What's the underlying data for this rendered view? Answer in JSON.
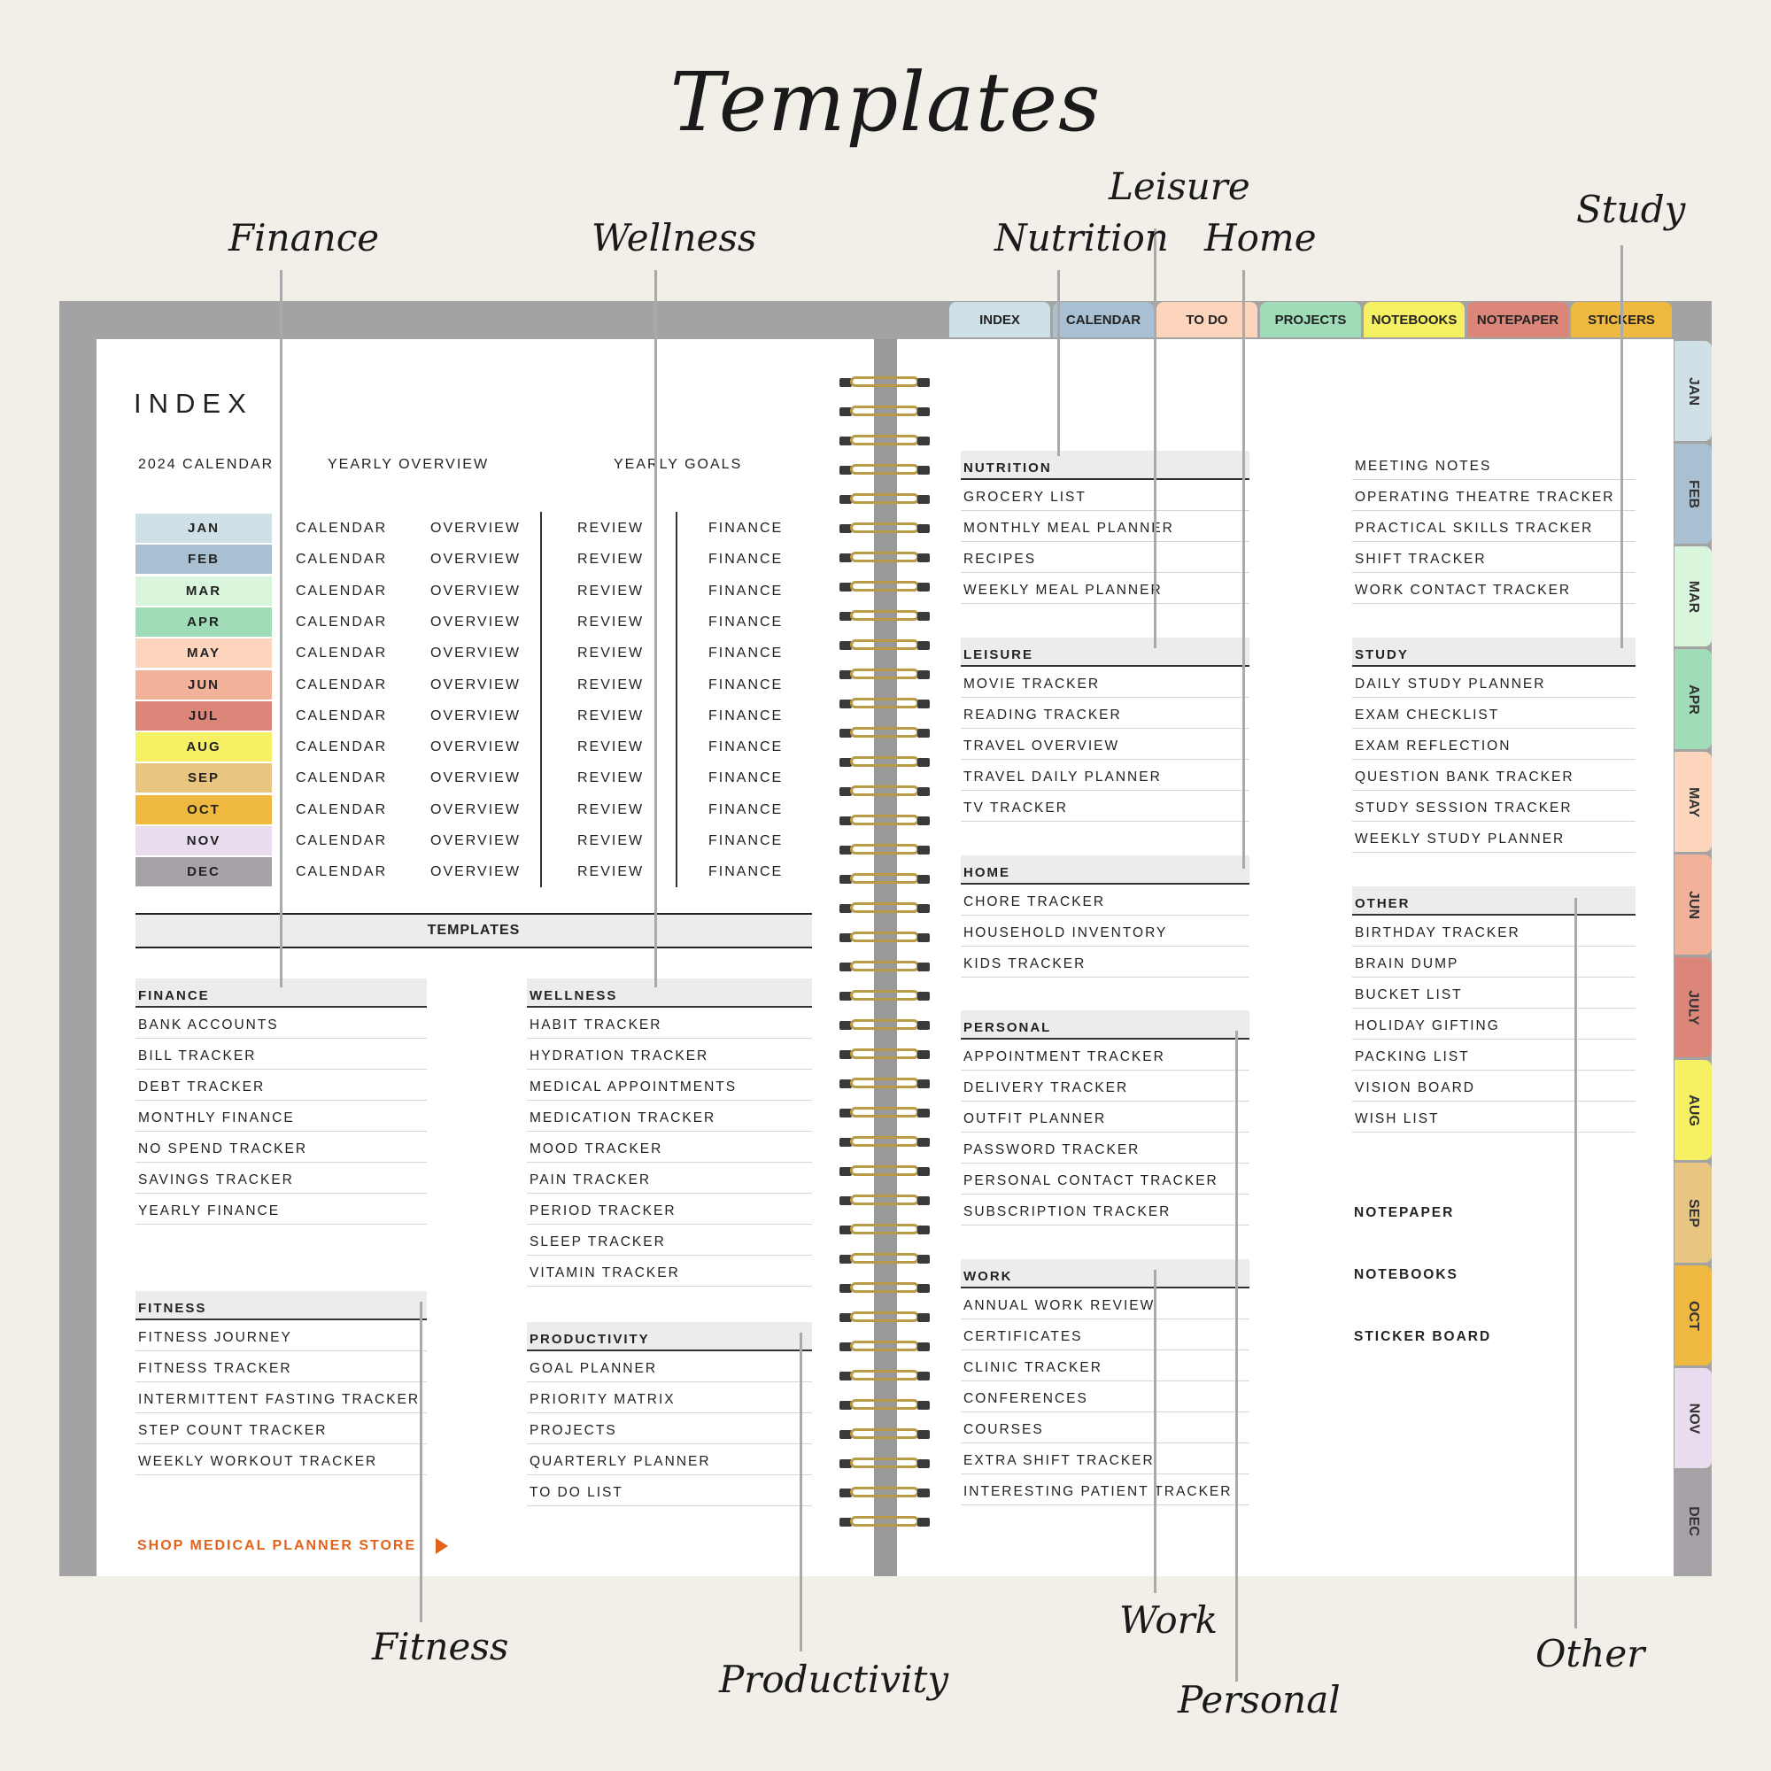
{
  "title": "Templates",
  "annotations": {
    "finance": "Finance",
    "wellness": "Wellness",
    "nutrition": "Nutrition",
    "leisure": "Leisure",
    "home": "Home",
    "study": "Study",
    "fitness": "Fitness",
    "productivity": "Productivity",
    "work": "Work",
    "personal": "Personal",
    "other": "Other"
  },
  "top_tabs": [
    {
      "label": "INDEX",
      "color": "#cfe0e6"
    },
    {
      "label": "CALENDAR",
      "color": "#a9c0d2"
    },
    {
      "label": "TO DO",
      "color": "#fcd5bc"
    },
    {
      "label": "PROJECTS",
      "color": "#9fdcb7"
    },
    {
      "label": "NOTEBOOKS",
      "color": "#f6f064"
    },
    {
      "label": "NOTEPAPER",
      "color": "#db8679"
    },
    {
      "label": "STICKERS",
      "color": "#eeb93e"
    }
  ],
  "side_tabs": [
    {
      "label": "JAN",
      "color": "#cfe0e6"
    },
    {
      "label": "FEB",
      "color": "#a9c0d2"
    },
    {
      "label": "MAR",
      "color": "#d9f6dc"
    },
    {
      "label": "APR",
      "color": "#9fdcb7"
    },
    {
      "label": "MAY",
      "color": "#fcd5bc"
    },
    {
      "label": "JUN",
      "color": "#f2b29a"
    },
    {
      "label": "JULY",
      "color": "#db8679"
    },
    {
      "label": "AUG",
      "color": "#f6f064"
    },
    {
      "label": "SEP",
      "color": "#e8c682"
    },
    {
      "label": "OCT",
      "color": "#eeb93e"
    },
    {
      "label": "NOV",
      "color": "#e8dcee"
    },
    {
      "label": "DEC",
      "color": "#a6a2a8"
    }
  ],
  "index": {
    "title": "INDEX",
    "headers": {
      "calendar": "2024 CALENDAR",
      "overview": "YEARLY OVERVIEW",
      "goals": "YEARLY GOALS"
    },
    "months": [
      {
        "label": "JAN",
        "color": "#cfe0e6"
      },
      {
        "label": "FEB",
        "color": "#a9c0d2"
      },
      {
        "label": "MAR",
        "color": "#d9f6dc"
      },
      {
        "label": "APR",
        "color": "#9fdcb7"
      },
      {
        "label": "MAY",
        "color": "#fcd5bc"
      },
      {
        "label": "JUN",
        "color": "#f2b29a"
      },
      {
        "label": "JUL",
        "color": "#db8679"
      },
      {
        "label": "AUG",
        "color": "#f6f064"
      },
      {
        "label": "SEP",
        "color": "#e8c682"
      },
      {
        "label": "OCT",
        "color": "#eeb93e"
      },
      {
        "label": "NOV",
        "color": "#e8dcee"
      },
      {
        "label": "DEC",
        "color": "#a6a2a8"
      }
    ],
    "col_calendar": "CALENDAR",
    "col_overview": "OVERVIEW",
    "col_review": "REVIEW",
    "col_finance": "FINANCE",
    "templates_label": "TEMPLATES"
  },
  "sections": {
    "finance": {
      "title": "FINANCE",
      "items": [
        "BANK ACCOUNTS",
        "BILL TRACKER",
        "DEBT TRACKER",
        "MONTHLY FINANCE",
        "NO SPEND TRACKER",
        "SAVINGS TRACKER",
        "YEARLY FINANCE"
      ]
    },
    "fitness": {
      "title": "FITNESS",
      "items": [
        "FITNESS JOURNEY",
        "FITNESS TRACKER",
        "INTERMITTENT FASTING  TRACKER",
        "STEP COUNT TRACKER",
        "WEEKLY WORKOUT TRACKER"
      ]
    },
    "wellness": {
      "title": "WELLNESS",
      "items": [
        "HABIT TRACKER",
        "HYDRATION TRACKER",
        "MEDICAL APPOINTMENTS",
        "MEDICATION TRACKER",
        "MOOD TRACKER",
        "PAIN TRACKER",
        "PERIOD TRACKER",
        "SLEEP TRACKER",
        "VITAMIN TRACKER"
      ]
    },
    "productivity": {
      "title": "PRODUCTIVITY",
      "items": [
        "GOAL PLANNER",
        "PRIORITY MATRIX",
        "PROJECTS",
        "QUARTERLY PLANNER",
        "TO DO LIST"
      ]
    },
    "nutrition": {
      "title": "NUTRITION",
      "items": [
        "GROCERY LIST",
        "MONTHLY MEAL PLANNER",
        "RECIPES",
        "WEEKLY MEAL PLANNER"
      ]
    },
    "leisure": {
      "title": "LEISURE",
      "items": [
        "MOVIE TRACKER",
        "READING TRACKER",
        "TRAVEL OVERVIEW",
        "TRAVEL DAILY PLANNER",
        "TV TRACKER"
      ]
    },
    "home": {
      "title": "HOME",
      "items": [
        "CHORE TRACKER",
        "HOUSEHOLD INVENTORY",
        "KIDS TRACKER"
      ]
    },
    "personal": {
      "title": "PERSONAL",
      "items": [
        "APPOINTMENT TRACKER",
        "DELIVERY TRACKER",
        "OUTFIT PLANNER",
        "PASSWORD TRACKER",
        "PERSONAL CONTACT TRACKER",
        "SUBSCRIPTION TRACKER"
      ]
    },
    "work": {
      "title": "WORK",
      "items": [
        "ANNUAL WORK REVIEW",
        "CERTIFICATES",
        "CLINIC TRACKER",
        "CONFERENCES",
        "COURSES",
        "EXTRA SHIFT TRACKER",
        "INTERESTING PATIENT TRACKER"
      ]
    },
    "work_extra": {
      "items": [
        "MEETING NOTES",
        "OPERATING THEATRE TRACKER",
        "PRACTICAL SKILLS TRACKER",
        "SHIFT TRACKER",
        "WORK CONTACT TRACKER"
      ]
    },
    "study": {
      "title": "STUDY",
      "items": [
        "DAILY STUDY PLANNER",
        "EXAM CHECKLIST",
        "EXAM REFLECTION",
        "QUESTION BANK TRACKER",
        "STUDY SESSION TRACKER",
        "WEEKLY STUDY PLANNER"
      ]
    },
    "other": {
      "title": "OTHER",
      "items": [
        "BIRTHDAY TRACKER",
        "BRAIN DUMP",
        "BUCKET LIST",
        "HOLIDAY GIFTING",
        "PACKING LIST",
        "VISION BOARD",
        "WISH LIST"
      ]
    }
  },
  "links": {
    "notepaper": "NOTEPAPER",
    "notebooks": "NOTEBOOKS",
    "sticker_board": "STICKER BOARD"
  },
  "shop_link": "SHOP MEDICAL PLANNER STORE"
}
